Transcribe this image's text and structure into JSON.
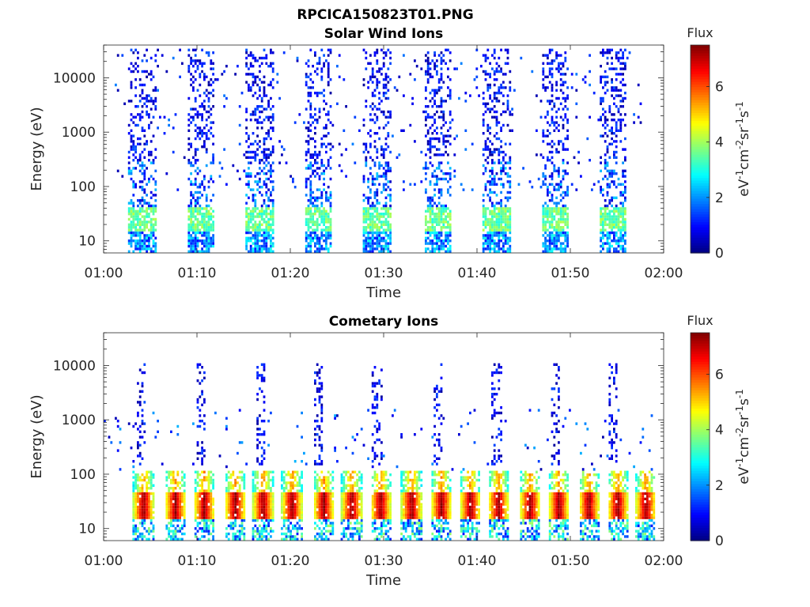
{
  "figure_title": "RPCICA150823T01.PNG",
  "colormap": [
    "#00007f",
    "#0000ff",
    "#007fff",
    "#00ffff",
    "#7fff7f",
    "#ffff00",
    "#ff7f00",
    "#ff0000",
    "#7f0000"
  ],
  "chart_data": [
    {
      "type": "heatmap",
      "title": "Solar Wind Ions",
      "xlabel": "Time",
      "ylabel": "Energy (eV)",
      "x_ticks": [
        "01:00",
        "01:10",
        "01:20",
        "01:30",
        "01:40",
        "01:50",
        "02:00"
      ],
      "xlim_minutes": [
        0,
        60
      ],
      "y_scale": "log",
      "ylim": [
        6,
        40000
      ],
      "y_ticks": [
        {
          "value": 10,
          "label": "10"
        },
        {
          "value": 100,
          "label": "100"
        },
        {
          "value": 1000,
          "label": "1000"
        },
        {
          "value": 10000,
          "label": "10000"
        }
      ],
      "colorbar": {
        "title": "Flux",
        "label": "eV-1cm-2sr-1s-1",
        "range": [
          0,
          7.5
        ],
        "ticks": [
          "0",
          "2",
          "4",
          "6"
        ]
      },
      "burst_center_minutes": [
        4.1,
        10.4,
        16.8,
        23.0,
        29.3,
        35.8,
        42.1,
        48.4,
        54.6
      ],
      "features": [
        {
          "name": "high-energy scatter",
          "energy_range_eV": [
            300,
            35000
          ],
          "flux": [
            0.2,
            1.5
          ]
        },
        {
          "name": "mid-energy band",
          "energy_range_eV": [
            50,
            300
          ],
          "flux": [
            0.5,
            2.5
          ]
        },
        {
          "name": "core population",
          "energy_range_eV": [
            15,
            40
          ],
          "flux": [
            3.0,
            4.2
          ]
        },
        {
          "name": "low-energy floor",
          "energy_range_eV": [
            6,
            15
          ],
          "flux": [
            1.0,
            3.0
          ]
        }
      ]
    },
    {
      "type": "heatmap",
      "title": "Cometary Ions",
      "xlabel": "Time",
      "ylabel": "Energy (eV)",
      "x_ticks": [
        "01:00",
        "01:10",
        "01:20",
        "01:30",
        "01:40",
        "01:50",
        "02:00"
      ],
      "xlim_minutes": [
        0,
        60
      ],
      "y_scale": "log",
      "ylim": [
        6,
        40000
      ],
      "y_ticks": [
        {
          "value": 10,
          "label": "10"
        },
        {
          "value": 100,
          "label": "100"
        },
        {
          "value": 1000,
          "label": "1000"
        },
        {
          "value": 10000,
          "label": "10000"
        }
      ],
      "colorbar": {
        "title": "Flux",
        "label": "eV-1cm-2sr-1s-1",
        "range": [
          0,
          7.5
        ],
        "ticks": [
          "0",
          "2",
          "4",
          "6"
        ]
      },
      "blob_center_minutes": [
        4.3,
        7.7,
        10.8,
        14.1,
        17.1,
        20.2,
        23.6,
        26.6,
        29.7,
        33.0,
        36.2,
        39.3,
        42.3,
        45.7,
        48.8,
        52.0,
        55.1,
        58.1
      ],
      "spike_center_minutes": [
        4.1,
        10.4,
        16.8,
        23.0,
        29.3,
        35.8,
        42.1,
        48.4,
        54.6
      ],
      "features": [
        {
          "name": "peak population",
          "energy_range_eV": [
            15,
            45
          ],
          "flux": [
            6.0,
            7.2
          ]
        },
        {
          "name": "rising shoulder",
          "energy_range_eV": [
            45,
            120
          ],
          "flux": [
            3.5,
            5.5
          ]
        },
        {
          "name": "low-energy tail",
          "energy_range_eV": [
            6,
            15
          ],
          "flux": [
            1.0,
            4.0
          ]
        },
        {
          "name": "high-energy scatter",
          "energy_range_eV": [
            150,
            10000
          ],
          "flux": [
            0.2,
            1.5
          ]
        }
      ]
    }
  ]
}
